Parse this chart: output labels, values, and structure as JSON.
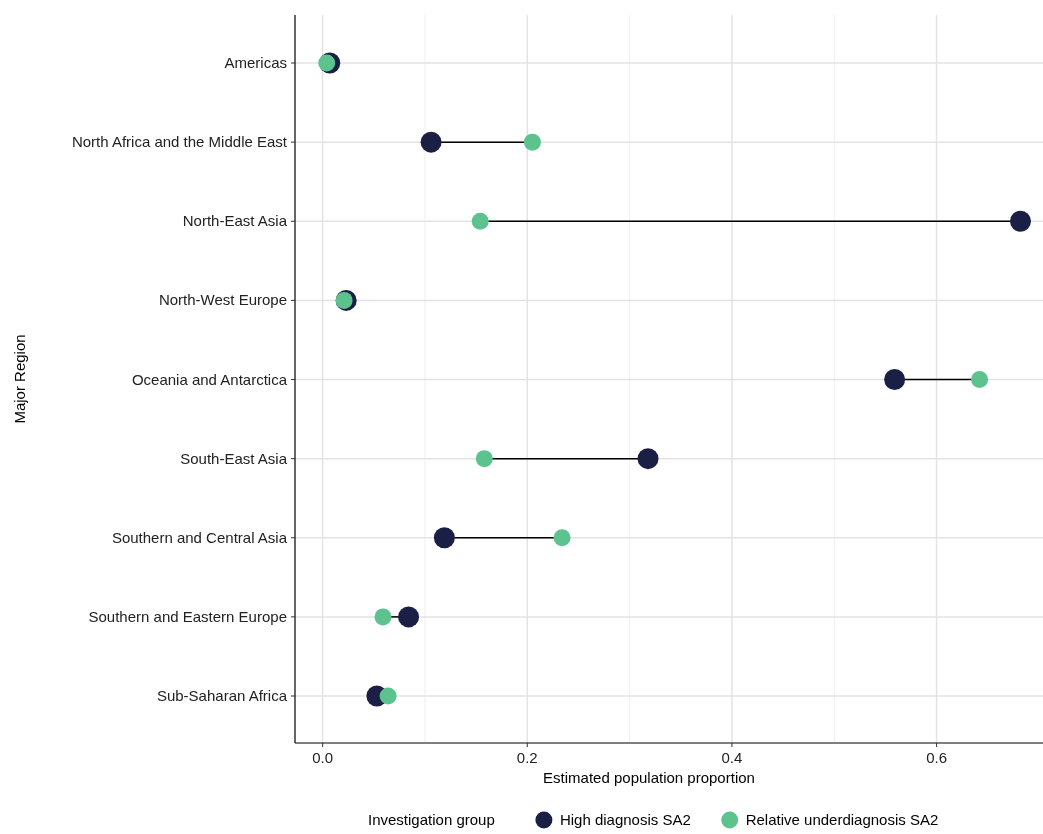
{
  "chart_data": {
    "type": "scatter",
    "orientation": "horizontal",
    "xlabel": "Estimated population proportion",
    "ylabel": "Major Region",
    "legend_title": "Investigation group",
    "categories": [
      "Americas",
      "North Africa and the Middle East",
      "North-East Asia",
      "North-West Europe",
      "Oceania and Antarctica",
      "South-East Asia",
      "Southern and Central Asia",
      "Southern and Eastern Europe",
      "Sub-Saharan Africa"
    ],
    "series": [
      {
        "name": "High diagnosis SA2",
        "color": "#1b1f45",
        "values": [
          0.007,
          0.106,
          0.682,
          0.023,
          0.559,
          0.318,
          0.119,
          0.084,
          0.053
        ]
      },
      {
        "name": "Relative underdiagnosis SA2",
        "color": "#5cc38f",
        "values": [
          0.004,
          0.205,
          0.154,
          0.021,
          0.642,
          0.158,
          0.234,
          0.059,
          0.064
        ]
      }
    ],
    "xlim": [
      -0.027,
      0.704
    ],
    "xticks": [
      {
        "value": 0,
        "label": "0.0"
      },
      {
        "value": 0.1,
        "label": null
      },
      0.2,
      {
        "value": 0.3,
        "label": null
      },
      0.4,
      {
        "value": 0.5,
        "label": null
      },
      0.6
    ],
    "grid": true,
    "legend": "bottom",
    "marker": "circle"
  }
}
